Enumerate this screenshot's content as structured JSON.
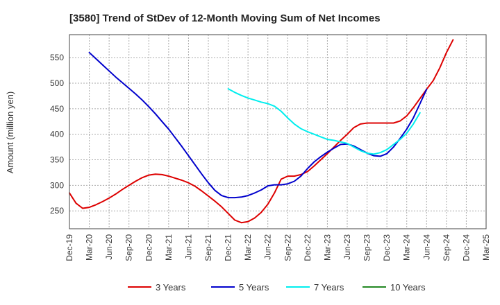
{
  "chart_data": {
    "type": "line",
    "title": "[3580]  Trend of StDev of 12-Month Moving Sum of Net Incomes",
    "xlabel": "",
    "ylabel": "Amount (million yen)",
    "ylim": [
      215,
      595
    ],
    "y_ticks": [
      250,
      300,
      350,
      400,
      450,
      500,
      550
    ],
    "x_categories": [
      "Dec-19",
      "Mar-20",
      "Jun-20",
      "Sep-20",
      "Dec-20",
      "Mar-21",
      "Jun-21",
      "Sep-21",
      "Dec-21",
      "Mar-22",
      "Jun-22",
      "Sep-22",
      "Dec-22",
      "Mar-23",
      "Jun-23",
      "Sep-23",
      "Dec-23",
      "Mar-24",
      "Jun-24",
      "Sep-24",
      "Dec-24",
      "Mar-25"
    ],
    "grid": true,
    "legend_position": "bottom",
    "series": [
      {
        "name": "3 Years",
        "color": "#dd0000",
        "values": [
          [
            0,
            285
          ],
          [
            1,
            265
          ],
          [
            2,
            255
          ],
          [
            3,
            257
          ],
          [
            4,
            262
          ],
          [
            5,
            268
          ],
          [
            6,
            275
          ],
          [
            7,
            283
          ],
          [
            8,
            292
          ],
          [
            9,
            300
          ],
          [
            10,
            308
          ],
          [
            11,
            315
          ],
          [
            12,
            320
          ],
          [
            13,
            322
          ],
          [
            14,
            321
          ],
          [
            15,
            318
          ],
          [
            16,
            314
          ],
          [
            17,
            310
          ],
          [
            18,
            305
          ],
          [
            19,
            298
          ],
          [
            20,
            289
          ],
          [
            21,
            279
          ],
          [
            22,
            269
          ],
          [
            23,
            258
          ],
          [
            24,
            245
          ],
          [
            25,
            232
          ],
          [
            26,
            227
          ],
          [
            27,
            229
          ],
          [
            28,
            236
          ],
          [
            29,
            247
          ],
          [
            30,
            263
          ],
          [
            31,
            285
          ],
          [
            32,
            312
          ],
          [
            33,
            318
          ],
          [
            34,
            318
          ],
          [
            35,
            321
          ],
          [
            36,
            327
          ],
          [
            37,
            338
          ],
          [
            38,
            350
          ],
          [
            39,
            362
          ],
          [
            40,
            375
          ],
          [
            41,
            388
          ],
          [
            42,
            400
          ],
          [
            43,
            413
          ],
          [
            44,
            420
          ],
          [
            45,
            422
          ],
          [
            46,
            422
          ],
          [
            47,
            422
          ],
          [
            48,
            422
          ],
          [
            49,
            422
          ],
          [
            50,
            426
          ],
          [
            51,
            436
          ],
          [
            52,
            452
          ],
          [
            53,
            470
          ],
          [
            54,
            488
          ],
          [
            55,
            505
          ],
          [
            56,
            530
          ],
          [
            57,
            560
          ],
          [
            58,
            585
          ]
        ]
      },
      {
        "name": "5 Years",
        "color": "#0000cc",
        "values": [
          [
            3,
            560
          ],
          [
            4,
            548
          ],
          [
            5,
            536
          ],
          [
            6,
            524
          ],
          [
            7,
            512
          ],
          [
            8,
            501
          ],
          [
            9,
            490
          ],
          [
            10,
            479
          ],
          [
            11,
            467
          ],
          [
            12,
            454
          ],
          [
            13,
            440
          ],
          [
            14,
            425
          ],
          [
            15,
            410
          ],
          [
            16,
            393
          ],
          [
            17,
            376
          ],
          [
            18,
            358
          ],
          [
            19,
            340
          ],
          [
            20,
            322
          ],
          [
            21,
            305
          ],
          [
            22,
            290
          ],
          [
            23,
            280
          ],
          [
            24,
            276
          ],
          [
            25,
            276
          ],
          [
            26,
            277
          ],
          [
            27,
            280
          ],
          [
            28,
            285
          ],
          [
            29,
            291
          ],
          [
            30,
            299
          ],
          [
            31,
            301
          ],
          [
            32,
            301
          ],
          [
            33,
            303
          ],
          [
            34,
            308
          ],
          [
            35,
            318
          ],
          [
            36,
            333
          ],
          [
            37,
            346
          ],
          [
            38,
            356
          ],
          [
            39,
            365
          ],
          [
            40,
            373
          ],
          [
            41,
            380
          ],
          [
            42,
            381
          ],
          [
            43,
            377
          ],
          [
            44,
            370
          ],
          [
            45,
            363
          ],
          [
            46,
            358
          ],
          [
            47,
            357
          ],
          [
            48,
            362
          ],
          [
            49,
            375
          ],
          [
            50,
            392
          ],
          [
            51,
            410
          ],
          [
            52,
            432
          ],
          [
            53,
            460
          ],
          [
            54,
            488
          ]
        ]
      },
      {
        "name": "7 Years",
        "color": "#00eeee",
        "values": [
          [
            24,
            489
          ],
          [
            25,
            482
          ],
          [
            26,
            476
          ],
          [
            27,
            471
          ],
          [
            28,
            467
          ],
          [
            29,
            463
          ],
          [
            30,
            460
          ],
          [
            31,
            455
          ],
          [
            32,
            445
          ],
          [
            33,
            432
          ],
          [
            34,
            420
          ],
          [
            35,
            411
          ],
          [
            36,
            405
          ],
          [
            37,
            400
          ],
          [
            38,
            395
          ],
          [
            39,
            390
          ],
          [
            40,
            388
          ],
          [
            41,
            385
          ],
          [
            42,
            382
          ],
          [
            43,
            375
          ],
          [
            44,
            368
          ],
          [
            45,
            363
          ],
          [
            46,
            361
          ],
          [
            47,
            364
          ],
          [
            48,
            370
          ],
          [
            49,
            380
          ],
          [
            50,
            390
          ],
          [
            51,
            402
          ],
          [
            52,
            420
          ],
          [
            53,
            442
          ]
        ]
      },
      {
        "name": "10 Years",
        "color": "#228822",
        "values": []
      }
    ]
  }
}
